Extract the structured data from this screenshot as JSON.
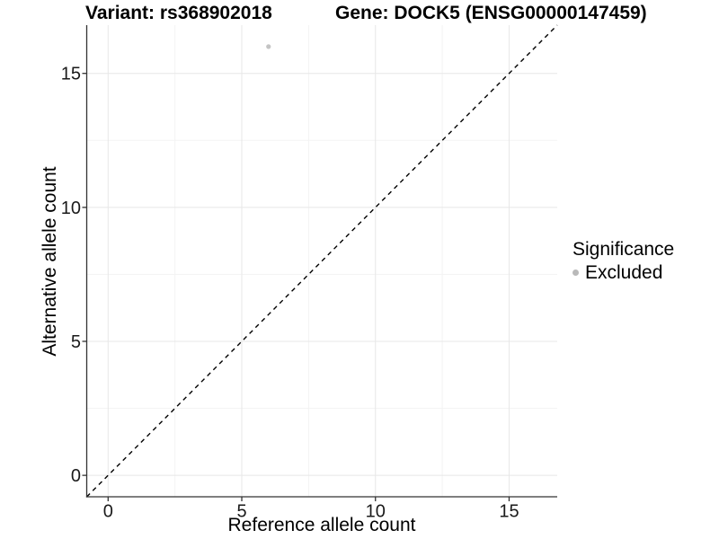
{
  "titles": {
    "variant": "Variant: rs368902018",
    "gene": "Gene: DOCK5 (ENSG00000147459)"
  },
  "legend": {
    "title": "Significance",
    "items": [
      {
        "label": "Excluded",
        "color": "#c0c0c0"
      }
    ]
  },
  "colors": {
    "point": "#c4c4c4",
    "legend_key": "#b9b9b9",
    "axis_line": "#333333",
    "tick_mark": "#333333",
    "tick_label": "#1a1a1a",
    "grid_major": "#e7e7e7",
    "grid_minor": "#f3f3f3",
    "reference_line": "#000000",
    "background": "#ffffff"
  },
  "chart_data": {
    "type": "scatter",
    "points": [
      {
        "x": 6,
        "y": 16,
        "series": "Excluded"
      }
    ],
    "series": [
      {
        "name": "Excluded",
        "color": "#c4c4c4"
      }
    ],
    "xlabel": "Reference allele count",
    "ylabel": "Alternative allele count",
    "xlim": [
      -0.8,
      16.8
    ],
    "ylim": [
      -0.8,
      16.8
    ],
    "x_ticks": [
      0,
      5,
      10,
      15
    ],
    "y_ticks": [
      0,
      5,
      10,
      15
    ],
    "x_minor_gridlines": [
      2.5,
      7.5,
      12.5
    ],
    "y_minor_gridlines": [
      2.5,
      7.5,
      12.5
    ],
    "reference_line": {
      "kind": "identity",
      "slope": 1,
      "intercept": 0,
      "style": "dashed"
    },
    "grid": "major+minor",
    "legend_position": "right",
    "legend_title": "Significance"
  }
}
